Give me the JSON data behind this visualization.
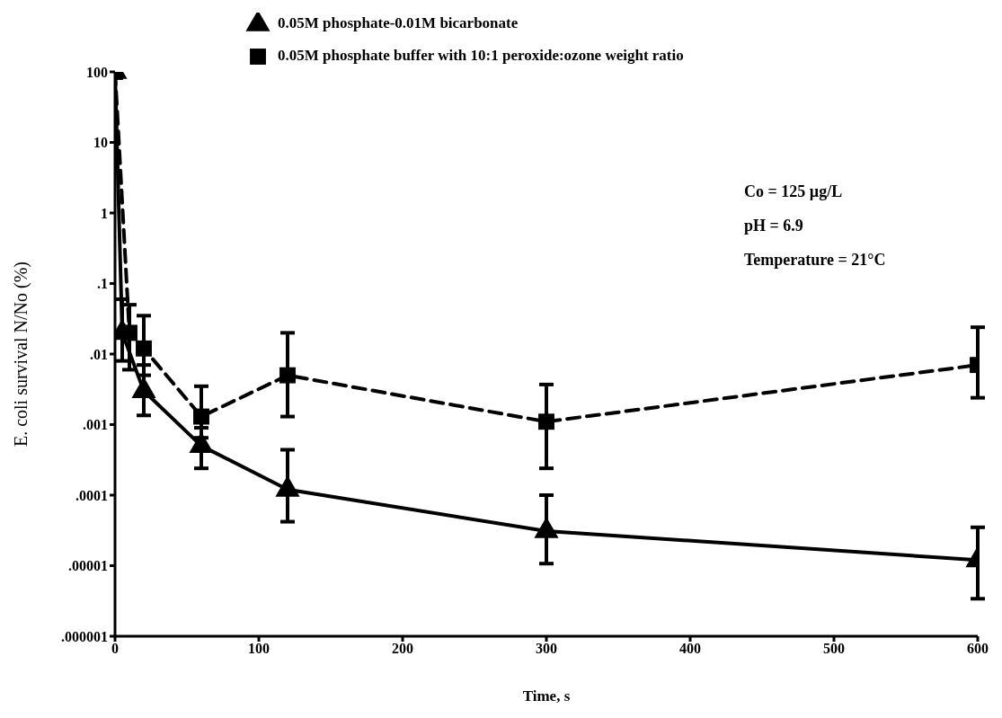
{
  "chart_data": {
    "type": "line",
    "xlabel": "Time, s",
    "ylabel": "E. coli survival N/No (%)",
    "log": "y",
    "legend": "top left",
    "grid": false,
    "xlim": [
      0,
      600
    ],
    "xticks": [
      0,
      100,
      200,
      300,
      400,
      500,
      600
    ],
    "ylim": [
      1e-06,
      100
    ],
    "yticks": [
      {
        "value": 100,
        "label": "100"
      },
      {
        "value": 10,
        "label": "10"
      },
      {
        "value": 1,
        "label": "1"
      },
      {
        "value": 0.1,
        "label": ".1"
      },
      {
        "value": 0.01,
        "label": ".01"
      },
      {
        "value": 0.001,
        "label": ".001"
      },
      {
        "value": 0.0001,
        "label": ".0001"
      },
      {
        "value": 1e-05,
        "label": ".00001"
      },
      {
        "value": 1e-06,
        "label": ".000001"
      }
    ],
    "series": [
      {
        "name": "0.05M phosphate-0.01M bicarbonate",
        "color": "#000000",
        "marker": "triangle",
        "line_style": "solid",
        "x": [
          0,
          5,
          20,
          60,
          120,
          300,
          600
        ],
        "values": [
          100,
          0.02,
          0.003,
          0.0005,
          0.00012,
          3.1e-05,
          1.2e-05
        ],
        "errors": [
          null,
          [
            0.008,
            0.06
          ],
          [
            0.00135,
            0.007
          ],
          [
            0.00024,
            0.0009
          ],
          [
            4.2e-05,
            0.00044
          ],
          [
            1.07e-05,
            0.0001
          ],
          [
            3.4e-06,
            3.5e-05
          ]
        ]
      },
      {
        "name": "0.05M phosphate buffer with 10:1 peroxide:ozone weight ratio",
        "color": "#000000",
        "marker": "square",
        "line_style": "dashed",
        "x": [
          0,
          10,
          20,
          60,
          120,
          300,
          600
        ],
        "values": [
          100,
          0.02,
          0.012,
          0.0013,
          0.005,
          0.0011,
          0.007
        ],
        "errors": [
          null,
          [
            0.006,
            0.05
          ],
          [
            0.005,
            0.035
          ],
          [
            0.00065,
            0.0035
          ],
          [
            0.0013,
            0.02
          ],
          [
            0.00024,
            0.0037
          ],
          [
            0.0024,
            0.024
          ]
        ]
      }
    ],
    "annotations": [
      "Co = 125 µg/L",
      "pH = 6.9",
      "Temperature = 21°C"
    ]
  }
}
